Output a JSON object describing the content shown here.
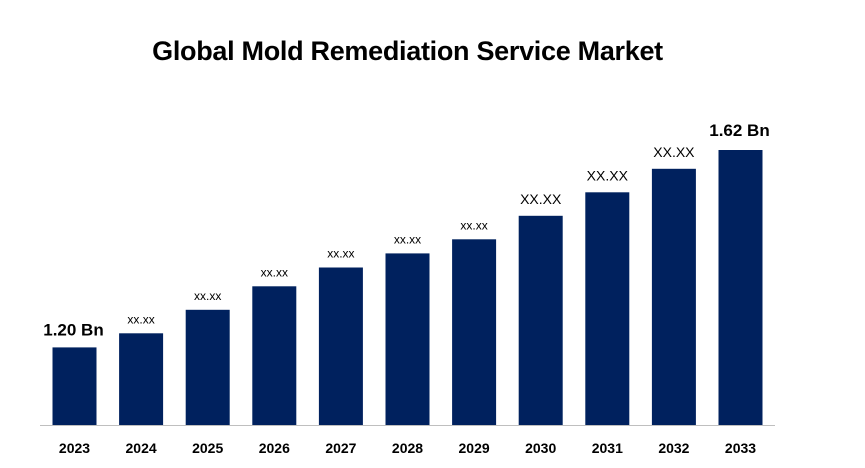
{
  "chart_data": {
    "type": "bar",
    "title": "Global Mold Remediation Service Market",
    "xlabel": "",
    "ylabel": "",
    "categories": [
      "2023",
      "2024",
      "2025",
      "2026",
      "2027",
      "2028",
      "2029",
      "2030",
      "2031",
      "2032",
      "2033"
    ],
    "values": [
      1.2,
      1.23,
      1.28,
      1.33,
      1.37,
      1.4,
      1.43,
      1.48,
      1.53,
      1.58,
      1.62
    ],
    "data_labels": [
      "1.20 Bn",
      "xx.xx",
      "xx.xx",
      "xx.xx",
      "xx.xx",
      "xx.xx",
      "xx.xx",
      "XX.XX",
      "XX.XX",
      "XX.XX",
      "1.62 Bn"
    ],
    "ylim": [
      1.035,
      1.62
    ],
    "grid": false,
    "legend": "none",
    "bar_color": "#00215e"
  }
}
